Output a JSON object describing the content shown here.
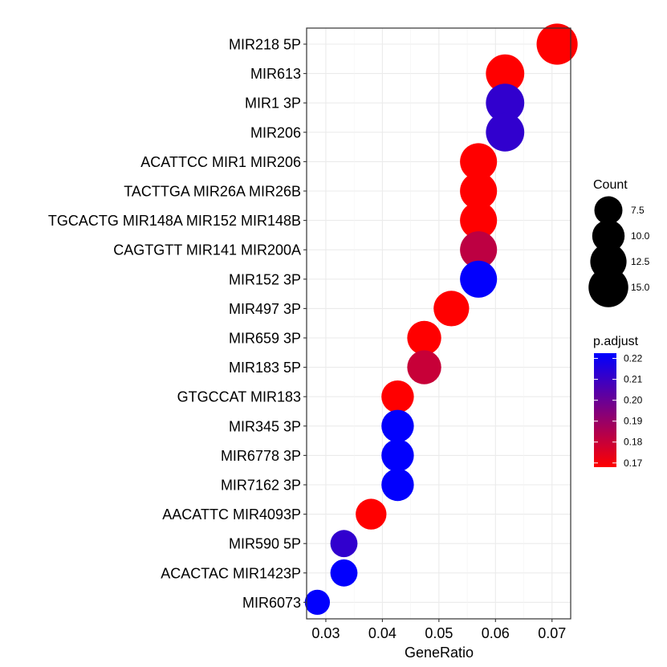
{
  "chart_data": {
    "type": "scatter",
    "xlabel": "GeneRatio",
    "ylabel": "",
    "xlim": [
      0.0266,
      0.0733
    ],
    "xticks": [
      0.03,
      0.04,
      0.05,
      0.06,
      0.07
    ],
    "xtick_labels": [
      "0.03",
      "0.04",
      "0.05",
      "0.06",
      "0.07"
    ],
    "grid": true,
    "categories": [
      "MIR218 5P",
      "MIR613",
      "MIR1 3P",
      "MIR206",
      "ACATTCC MIR1 MIR206",
      "TACTTGA MIR26A MIR26B",
      "TGCACTG MIR148A MIR152 MIR148B",
      "CAGTGTT MIR141 MIR200A",
      "MIR152 3P",
      "MIR497 3P",
      "MIR659 3P",
      "MIR183 5P",
      "GTGCCAT MIR183",
      "MIR345 3P",
      "MIR6778 3P",
      "MIR7162 3P",
      "AACATTC MIR4093P",
      "MIR590 5P",
      "ACACTAC MIR1423P",
      "MIR6073"
    ],
    "points": [
      {
        "term": "MIR218 5P",
        "x": 0.0709,
        "count": 16,
        "p_adjust": 0.168
      },
      {
        "term": "MIR613",
        "x": 0.0617,
        "count": 14,
        "p_adjust": 0.168
      },
      {
        "term": "MIR1 3P",
        "x": 0.0617,
        "count": 14,
        "p_adjust": 0.212
      },
      {
        "term": "MIR206",
        "x": 0.0617,
        "count": 14,
        "p_adjust": 0.212
      },
      {
        "term": "ACATTCC MIR1 MIR206",
        "x": 0.057,
        "count": 13,
        "p_adjust": 0.168
      },
      {
        "term": "TACTTGA MIR26A MIR26B",
        "x": 0.057,
        "count": 13,
        "p_adjust": 0.168
      },
      {
        "term": "TGCACTG MIR148A MIR152 MIR148B",
        "x": 0.057,
        "count": 13,
        "p_adjust": 0.168
      },
      {
        "term": "CAGTGTT MIR141 MIR200A",
        "x": 0.057,
        "count": 13,
        "p_adjust": 0.182
      },
      {
        "term": "MIR152 3P",
        "x": 0.057,
        "count": 13,
        "p_adjust": 0.222
      },
      {
        "term": "MIR497 3P",
        "x": 0.0522,
        "count": 12,
        "p_adjust": 0.168
      },
      {
        "term": "MIR659 3P",
        "x": 0.0474,
        "count": 11,
        "p_adjust": 0.168
      },
      {
        "term": "MIR183 5P",
        "x": 0.0474,
        "count": 11,
        "p_adjust": 0.18
      },
      {
        "term": "GTGCCAT MIR183",
        "x": 0.0427,
        "count": 10,
        "p_adjust": 0.168
      },
      {
        "term": "MIR345 3P",
        "x": 0.0427,
        "count": 10,
        "p_adjust": 0.222
      },
      {
        "term": "MIR6778 3P",
        "x": 0.0427,
        "count": 10,
        "p_adjust": 0.222
      },
      {
        "term": "MIR7162 3P",
        "x": 0.0427,
        "count": 10,
        "p_adjust": 0.222
      },
      {
        "term": "AACATTC MIR4093P",
        "x": 0.038,
        "count": 9,
        "p_adjust": 0.168
      },
      {
        "term": "MIR590 5P",
        "x": 0.0332,
        "count": 7,
        "p_adjust": 0.212
      },
      {
        "term": "ACACTAC MIR1423P",
        "x": 0.0332,
        "count": 7,
        "p_adjust": 0.222
      },
      {
        "term": "MIR6073",
        "x": 0.0285,
        "count": 6,
        "p_adjust": 0.222
      }
    ],
    "size_legend": {
      "title": "Count",
      "values": [
        7.5,
        10.0,
        12.5,
        15.0
      ],
      "labels": [
        "7.5",
        "10.0",
        "12.5",
        "15.0"
      ]
    },
    "color_legend": {
      "title": "p.adjust",
      "low_color": "#ff0000",
      "high_color": "#0000ff",
      "range": [
        0.168,
        0.2225
      ],
      "breaks": [
        0.17,
        0.18,
        0.19,
        0.2,
        0.21,
        0.22
      ],
      "labels": [
        "0.17",
        "0.18",
        "0.19",
        "0.20",
        "0.21",
        "0.22"
      ]
    }
  }
}
